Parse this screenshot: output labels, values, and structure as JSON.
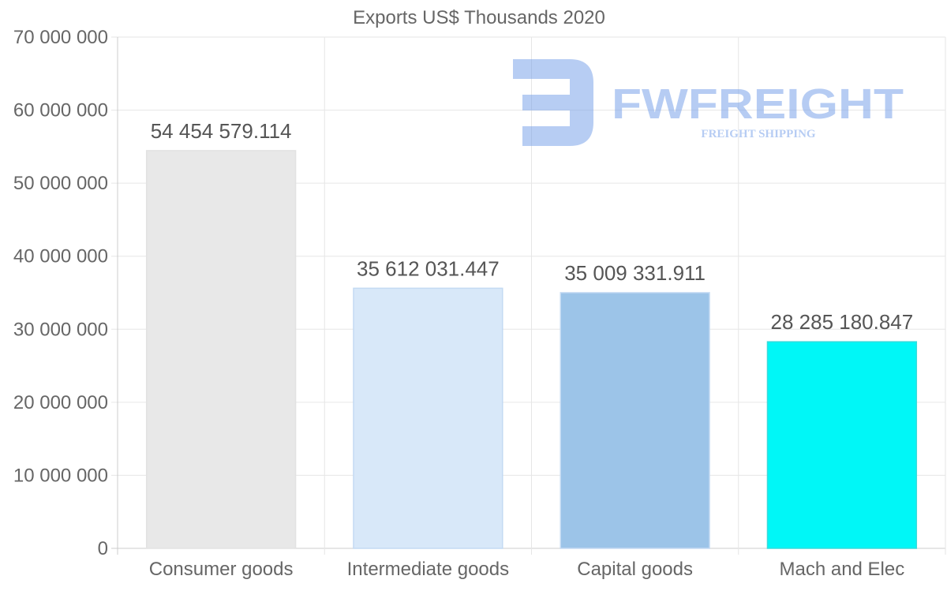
{
  "chart_data": {
    "type": "bar",
    "title": "Exports US$ Thousands 2020",
    "categories": [
      "Consumer goods",
      "Intermediate goods",
      "Capital goods",
      "Mach and Elec"
    ],
    "values": [
      54454579.114,
      35612031.447,
      35009331.911,
      28285180.847
    ],
    "value_labels": [
      "54 454 579.114",
      "35 612 031.447",
      "35 009 331.911",
      "28 285 180.847"
    ],
    "colors": [
      "#e8e8e8",
      "#d8e8f9",
      "#9cc4e8",
      "#00f7f7"
    ],
    "ylim": [
      0,
      70000000
    ],
    "yticks": [
      {
        "value": 0,
        "label": "0"
      },
      {
        "value": 10000000,
        "label": "10 000 000"
      },
      {
        "value": 20000000,
        "label": "20 000 000"
      },
      {
        "value": 30000000,
        "label": "30 000 000"
      },
      {
        "value": 40000000,
        "label": "40 000 000"
      },
      {
        "value": 50000000,
        "label": "50 000 000"
      },
      {
        "value": 60000000,
        "label": "60 000 000"
      },
      {
        "value": 70000000,
        "label": "70 000 000"
      }
    ],
    "xlabel": "",
    "ylabel": "",
    "grid": true,
    "legend": "none"
  },
  "watermark": {
    "brand": "FWFREIGHT",
    "tagline": "FREIGHT SHIPPING"
  }
}
